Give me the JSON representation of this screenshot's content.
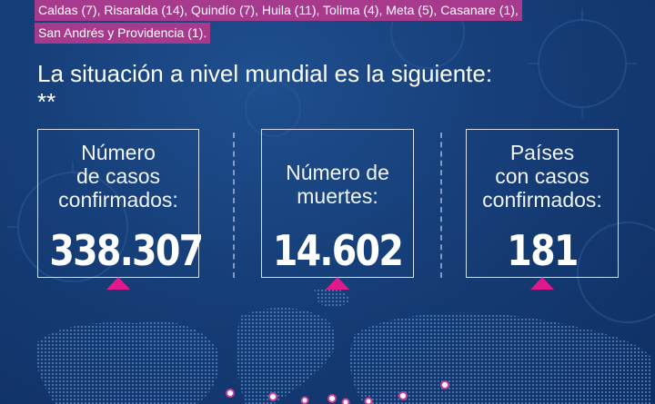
{
  "departments": {
    "line1": "Caldas (7), Risaralda (14), Quindío (7), Huila (11), Tolima (4), Meta (5), Casanare (1),",
    "line2": "San Andrés y Providencia (1)."
  },
  "world_section": {
    "title": "La situación a nivel mundial es la siguiente: **"
  },
  "stats": [
    {
      "label_lines": [
        "Número",
        "de casos",
        "confirmados:"
      ],
      "value": "338.307"
    },
    {
      "label_lines": [
        "Número de",
        "muertes:"
      ],
      "value": "14.602"
    },
    {
      "label_lines": [
        "Países",
        "con casos",
        "confirmados:"
      ],
      "value": "181"
    }
  ],
  "colors": {
    "background": "#163e78",
    "banner_highlight": "#a83a8e",
    "accent_pink": "#e2198a",
    "map_land": "#2c5a95"
  },
  "map_markers": 8
}
